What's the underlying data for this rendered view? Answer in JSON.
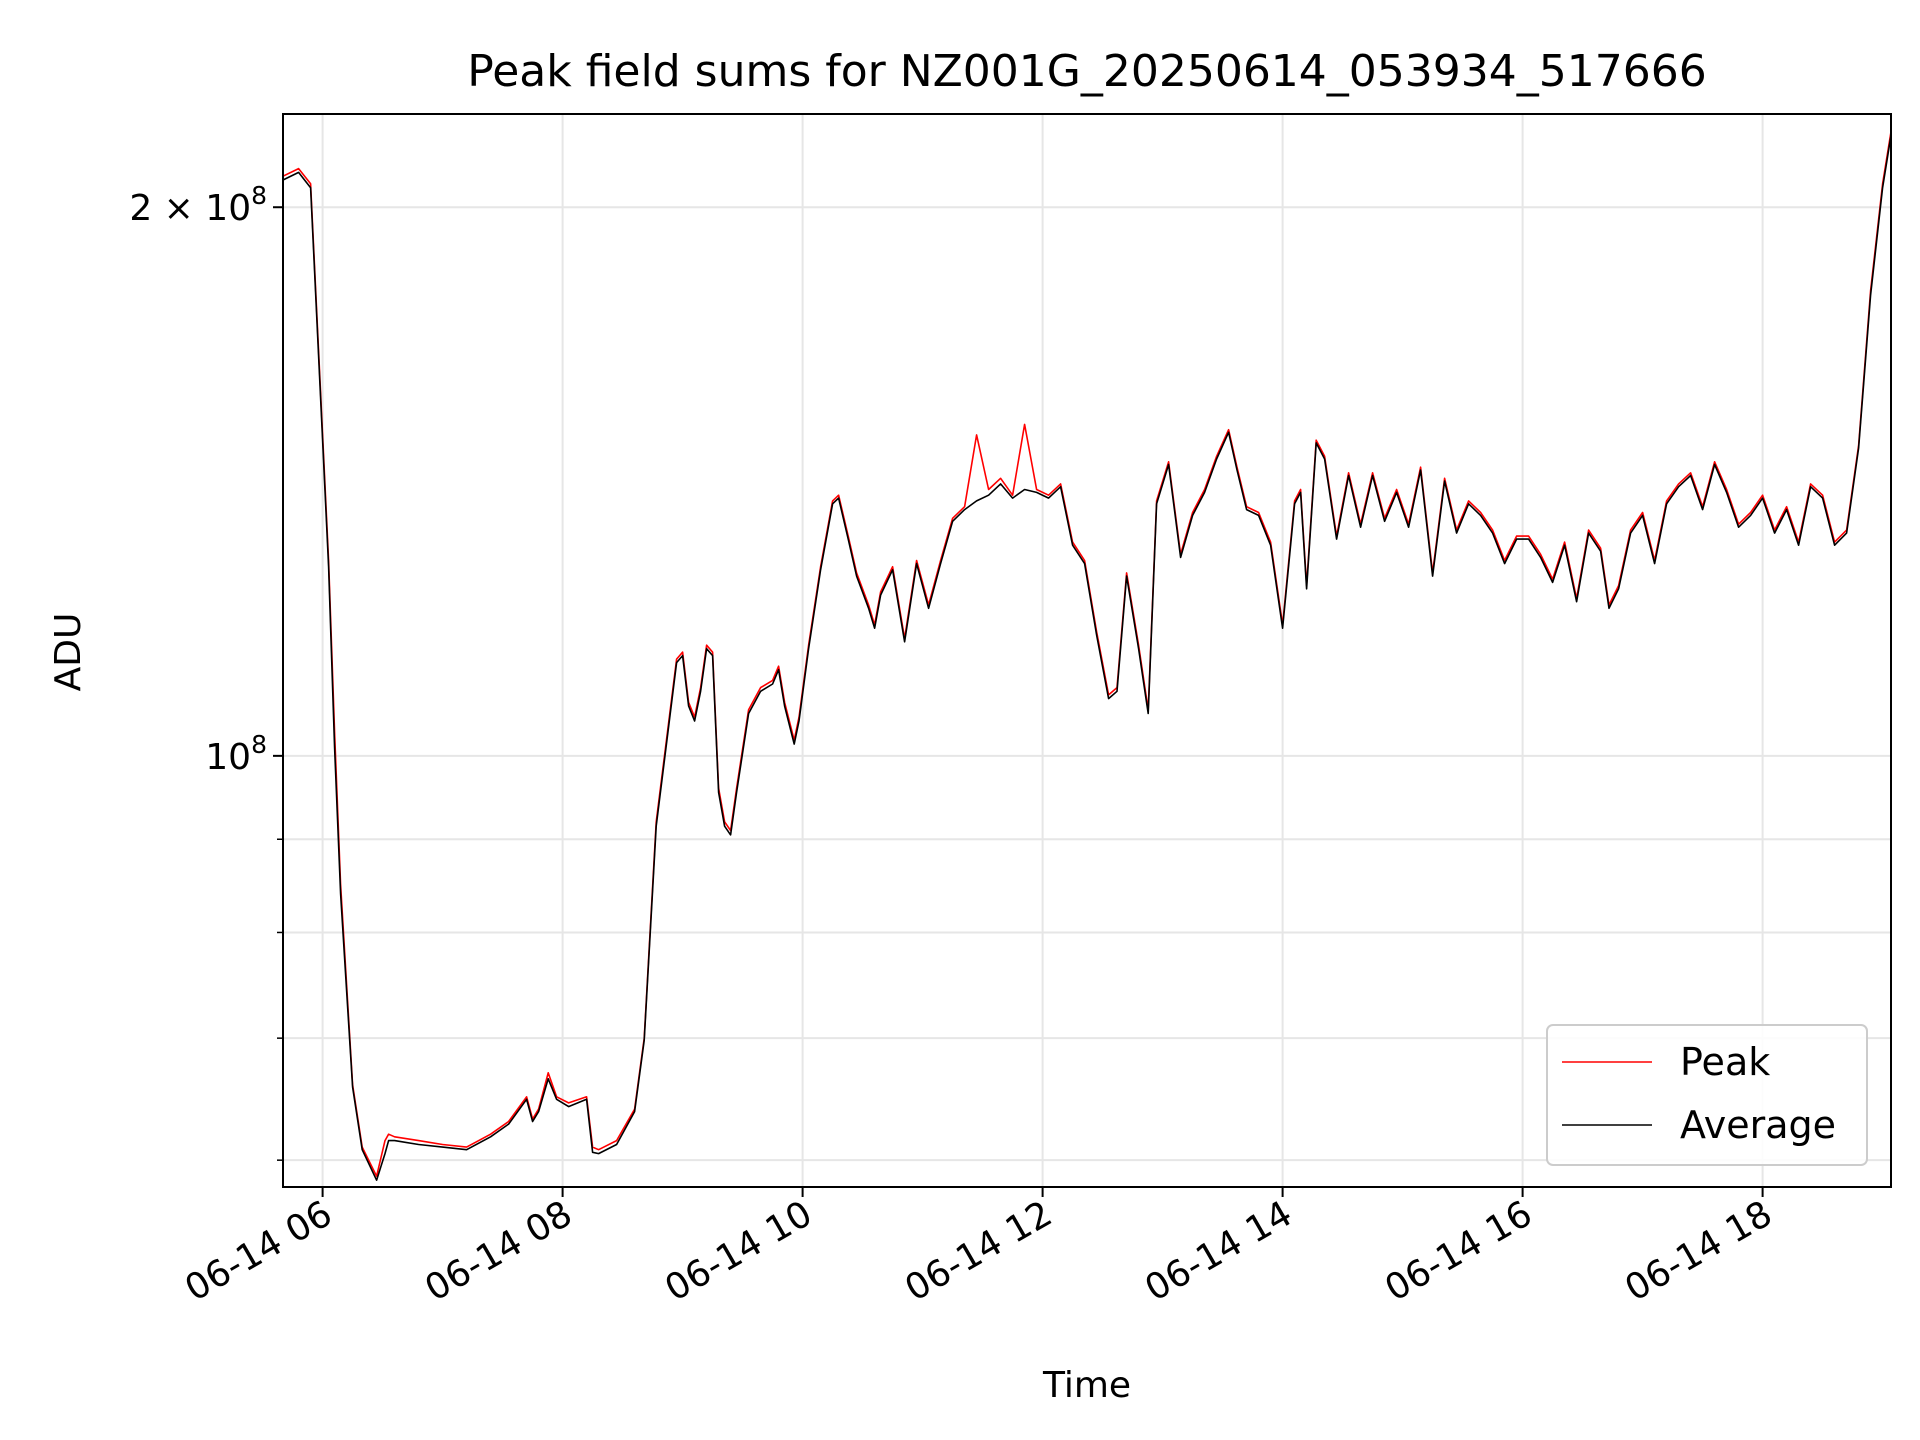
{
  "chart_data": {
    "type": "line",
    "title": "Peak field sums for NZ001G_20250614_053934_517666",
    "xlabel": "Time",
    "ylabel": "ADU",
    "x_unit": "hour of 2025-06-14",
    "y_scale": "log",
    "xlim": [
      5.67,
      19.07
    ],
    "ylim": [
      58000000,
      225000000
    ],
    "grid": true,
    "legend_position": "lower right",
    "x_ticks": [
      {
        "value": 6,
        "label": "06-14 06"
      },
      {
        "value": 8,
        "label": "06-14 08"
      },
      {
        "value": 10,
        "label": "06-14 10"
      },
      {
        "value": 12,
        "label": "06-14 12"
      },
      {
        "value": 14,
        "label": "06-14 14"
      },
      {
        "value": 16,
        "label": "06-14 16"
      },
      {
        "value": 18,
        "label": "06-14 18"
      }
    ],
    "y_major_ticks": [
      {
        "value": 100000000,
        "base": "10",
        "exp": "8",
        "mult": ""
      },
      {
        "value": 200000000,
        "base": "10",
        "exp": "8",
        "mult": "2 × "
      }
    ],
    "y_minor_ticks": [
      60000000,
      70000000,
      80000000,
      90000000
    ],
    "x": [
      5.67,
      5.8,
      5.9,
      6.0,
      6.05,
      6.1,
      6.15,
      6.25,
      6.33,
      6.45,
      6.52,
      6.55,
      6.6,
      6.8,
      7.0,
      7.2,
      7.4,
      7.55,
      7.7,
      7.75,
      7.8,
      7.88,
      7.95,
      8.05,
      8.2,
      8.25,
      8.3,
      8.45,
      8.6,
      8.68,
      8.78,
      8.95,
      9.0,
      9.05,
      9.1,
      9.15,
      9.2,
      9.25,
      9.3,
      9.35,
      9.4,
      9.45,
      9.55,
      9.65,
      9.75,
      9.8,
      9.85,
      9.93,
      9.97,
      10.05,
      10.15,
      10.25,
      10.3,
      10.38,
      10.45,
      10.55,
      10.6,
      10.65,
      10.75,
      10.85,
      10.95,
      11.05,
      11.15,
      11.25,
      11.35,
      11.45,
      11.55,
      11.65,
      11.75,
      11.85,
      11.95,
      12.05,
      12.15,
      12.25,
      12.35,
      12.45,
      12.55,
      12.62,
      12.7,
      12.8,
      12.88,
      12.95,
      13.05,
      13.15,
      13.25,
      13.35,
      13.45,
      13.55,
      13.62,
      13.7,
      13.8,
      13.9,
      14.0,
      14.1,
      14.15,
      14.2,
      14.28,
      14.35,
      14.45,
      14.55,
      14.65,
      14.75,
      14.85,
      14.95,
      15.05,
      15.15,
      15.25,
      15.35,
      15.45,
      15.55,
      15.65,
      15.75,
      15.85,
      15.95,
      16.05,
      16.15,
      16.25,
      16.35,
      16.45,
      16.55,
      16.65,
      16.72,
      16.8,
      16.9,
      17.0,
      17.1,
      17.2,
      17.3,
      17.4,
      17.5,
      17.6,
      17.7,
      17.8,
      17.9,
      18.0,
      18.1,
      18.2,
      18.3,
      18.4,
      18.5,
      18.6,
      18.7,
      18.8,
      18.9,
      19.0,
      19.07
    ],
    "series": [
      {
        "name": "Peak",
        "color": "#ff0000",
        "values": [
          208000000,
          210000000,
          206000000,
          150000000,
          128000000,
          103000000,
          85000000,
          66000000,
          61000000,
          58800000,
          61500000,
          62000000,
          61800000,
          61500000,
          61200000,
          61000000,
          62000000,
          63000000,
          65000000,
          63200000,
          64000000,
          67000000,
          65000000,
          64500000,
          65000000,
          61000000,
          60800000,
          61500000,
          64000000,
          70000000,
          92000000,
          113000000,
          114000000,
          107000000,
          105000000,
          109000000,
          115000000,
          114000000,
          96000000,
          92000000,
          91000000,
          96000000,
          106000000,
          109000000,
          110000000,
          112000000,
          107000000,
          102000000,
          105000000,
          115000000,
          127000000,
          138000000,
          139000000,
          132000000,
          126000000,
          121000000,
          118000000,
          123000000,
          127000000,
          116000000,
          128000000,
          121000000,
          128000000,
          135000000,
          137000000,
          150000000,
          140000000,
          142000000,
          139000000,
          152000000,
          140000000,
          139000000,
          141000000,
          131000000,
          128000000,
          117000000,
          108000000,
          109000000,
          126000000,
          115000000,
          106000000,
          138000000,
          145000000,
          129000000,
          136000000,
          140000000,
          146000000,
          151000000,
          144000000,
          137000000,
          136000000,
          131000000,
          118000000,
          138000000,
          140000000,
          124000000,
          149000000,
          146000000,
          132000000,
          143000000,
          134000000,
          143000000,
          135000000,
          140000000,
          134000000,
          144000000,
          126000000,
          142000000,
          133000000,
          138000000,
          136000000,
          133000000,
          128000000,
          132000000,
          132000000,
          129000000,
          125000000,
          131000000,
          122000000,
          133000000,
          130000000,
          121000000,
          124000000,
          133000000,
          136000000,
          128000000,
          138000000,
          141000000,
          143000000,
          137000000,
          145000000,
          140000000,
          134000000,
          136000000,
          139000000,
          133000000,
          137000000,
          131000000,
          141000000,
          139000000,
          131000000,
          133000000,
          148000000,
          180000000,
          206000000,
          220000000
        ]
      },
      {
        "name": "Average",
        "color": "#000000",
        "values": [
          207000000,
          209000000,
          205000000,
          149000000,
          127000000,
          101000000,
          84000000,
          65800000,
          60800000,
          58500000,
          60500000,
          61500000,
          61500000,
          61200000,
          61000000,
          60800000,
          61800000,
          62800000,
          64800000,
          63000000,
          63800000,
          66500000,
          64800000,
          64200000,
          64800000,
          60600000,
          60500000,
          61200000,
          63800000,
          69800000,
          91500000,
          112500000,
          113500000,
          106500000,
          104500000,
          108500000,
          114500000,
          113500000,
          95500000,
          91500000,
          90500000,
          95500000,
          105500000,
          108500000,
          109500000,
          111500000,
          106500000,
          101500000,
          104500000,
          114500000,
          126500000,
          137500000,
          138500000,
          131500000,
          125500000,
          120500000,
          117500000,
          122500000,
          126500000,
          115500000,
          127500000,
          120500000,
          127500000,
          134500000,
          136500000,
          138000000,
          139000000,
          141000000,
          138500000,
          140000000,
          139500000,
          138500000,
          140500000,
          130500000,
          127500000,
          116500000,
          107500000,
          108500000,
          125500000,
          114500000,
          105500000,
          137500000,
          144500000,
          128500000,
          135500000,
          139500000,
          145500000,
          150500000,
          143500000,
          136500000,
          135500000,
          130500000,
          117500000,
          137500000,
          139500000,
          123500000,
          148500000,
          145500000,
          131500000,
          142500000,
          133500000,
          142500000,
          134500000,
          139500000,
          133500000,
          143500000,
          125500000,
          141500000,
          132500000,
          137500000,
          135500000,
          132500000,
          127500000,
          131500000,
          131500000,
          128500000,
          124500000,
          130500000,
          121500000,
          132500000,
          129500000,
          120500000,
          123500000,
          132500000,
          135500000,
          127500000,
          137500000,
          140500000,
          142500000,
          136500000,
          144500000,
          139500000,
          133500000,
          135500000,
          138500000,
          132500000,
          136500000,
          130500000,
          140500000,
          138500000,
          130500000,
          132500000,
          147500000,
          179000000,
          205000000,
          219000000
        ]
      }
    ]
  }
}
